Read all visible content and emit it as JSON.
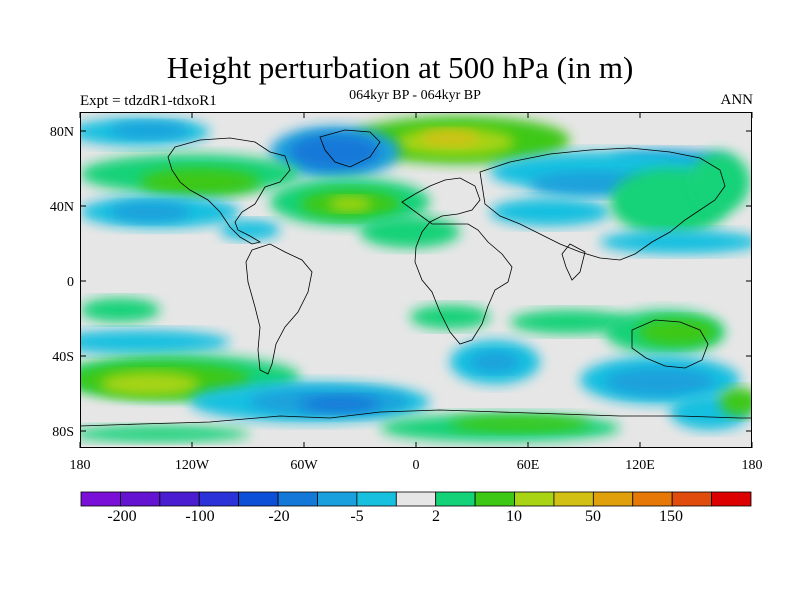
{
  "header": {
    "title": "Height perturbation at 500 hPa (in m)",
    "subtitle": "064kyr BP - 064kyr BP",
    "left_label": "Expt = tdzdR1-tdxoR1",
    "right_label": "ANN"
  },
  "map": {
    "projection": "cylindrical equidistant",
    "lat_ticks": [
      "80N",
      "40N",
      "0",
      "40S",
      "80S"
    ],
    "lon_ticks": [
      "180",
      "120W",
      "60W",
      "0",
      "60E",
      "120E",
      "180"
    ],
    "field": "500 hPa height perturbation",
    "units": "m"
  },
  "colorbar": {
    "colors": [
      "#7a10d8",
      "#6414d0",
      "#4a1ed0",
      "#2a32d8",
      "#0c50d8",
      "#1478d8",
      "#1aa0dc",
      "#18c0e0",
      "#e6e6e6",
      "#14d278",
      "#3cc814",
      "#a8d414",
      "#d2c014",
      "#e0a00c",
      "#e67808",
      "#e04c0c",
      "#dc0000"
    ],
    "labels": [
      "-200",
      "-100",
      "-20",
      "-5",
      "2",
      "10",
      "50",
      "150"
    ]
  }
}
